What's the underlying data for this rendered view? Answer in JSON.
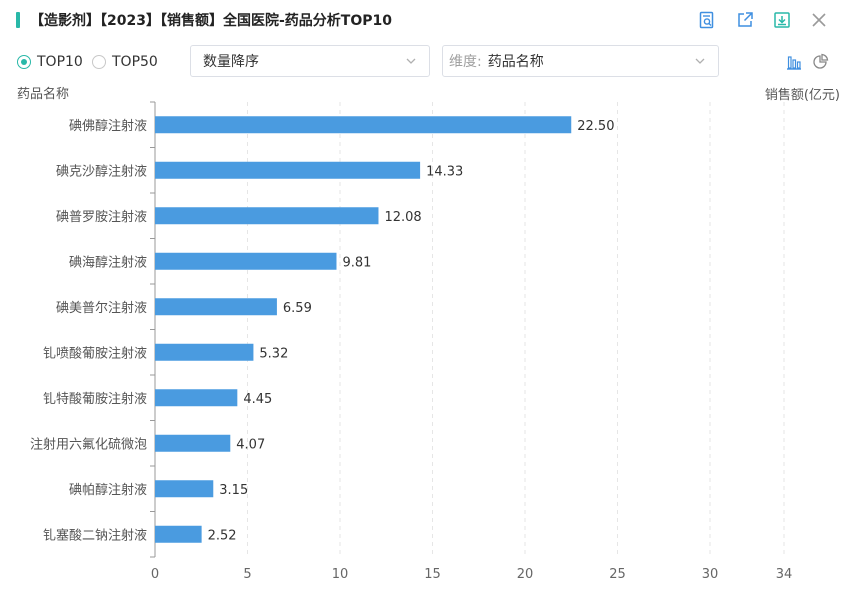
{
  "header": {
    "title": "【造影剂】【2023】【销售额】全国医院-药品分析TOP10",
    "icons": [
      "detail-view-icon",
      "export-icon",
      "download-icon",
      "close-icon"
    ]
  },
  "controls": {
    "radios": [
      {
        "label": "TOP10",
        "checked": true
      },
      {
        "label": "TOP50",
        "checked": false
      }
    ],
    "sort_select": {
      "value": "数量降序"
    },
    "dimension_select": {
      "prefix": "维度:",
      "value": "药品名称"
    },
    "view_icons": [
      "bar-chart-icon",
      "pie-chart-icon"
    ]
  },
  "chart_data": {
    "type": "bar",
    "orientation": "horizontal",
    "ylabel": "药品名称",
    "xlabel": "销售额(亿元)",
    "categories": [
      "碘佛醇注射液",
      "碘克沙醇注射液",
      "碘普罗胺注射液",
      "碘海醇注射液",
      "碘美普尔注射液",
      "钆喷酸葡胺注射液",
      "钆特酸葡胺注射液",
      "注射用六氟化硫微泡",
      "碘帕醇注射液",
      "钆塞酸二钠注射液"
    ],
    "values": [
      22.5,
      14.33,
      12.08,
      9.81,
      6.59,
      5.32,
      4.45,
      4.07,
      3.15,
      2.52
    ],
    "value_labels": [
      "22.50",
      "14.33",
      "12.08",
      "9.81",
      "6.59",
      "5.32",
      "4.45",
      "4.07",
      "3.15",
      "2.52"
    ],
    "xticks": [
      0,
      5,
      10,
      15,
      20,
      25,
      30,
      34
    ],
    "xlim": [
      0,
      34
    ],
    "grid": "vertical dashed",
    "bar_color": "#4a9be0"
  }
}
